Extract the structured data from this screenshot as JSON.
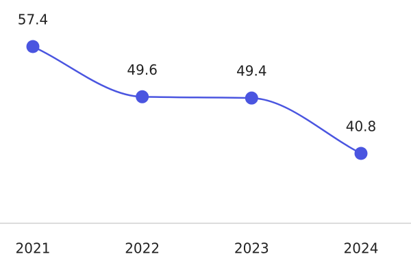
{
  "chart_data": {
    "type": "line",
    "categories": [
      "2021",
      "2022",
      "2023",
      "2024"
    ],
    "series": [
      {
        "values": [
          57.4,
          49.6,
          49.4,
          40.8
        ],
        "color": "#4a55e0"
      }
    ]
  }
}
